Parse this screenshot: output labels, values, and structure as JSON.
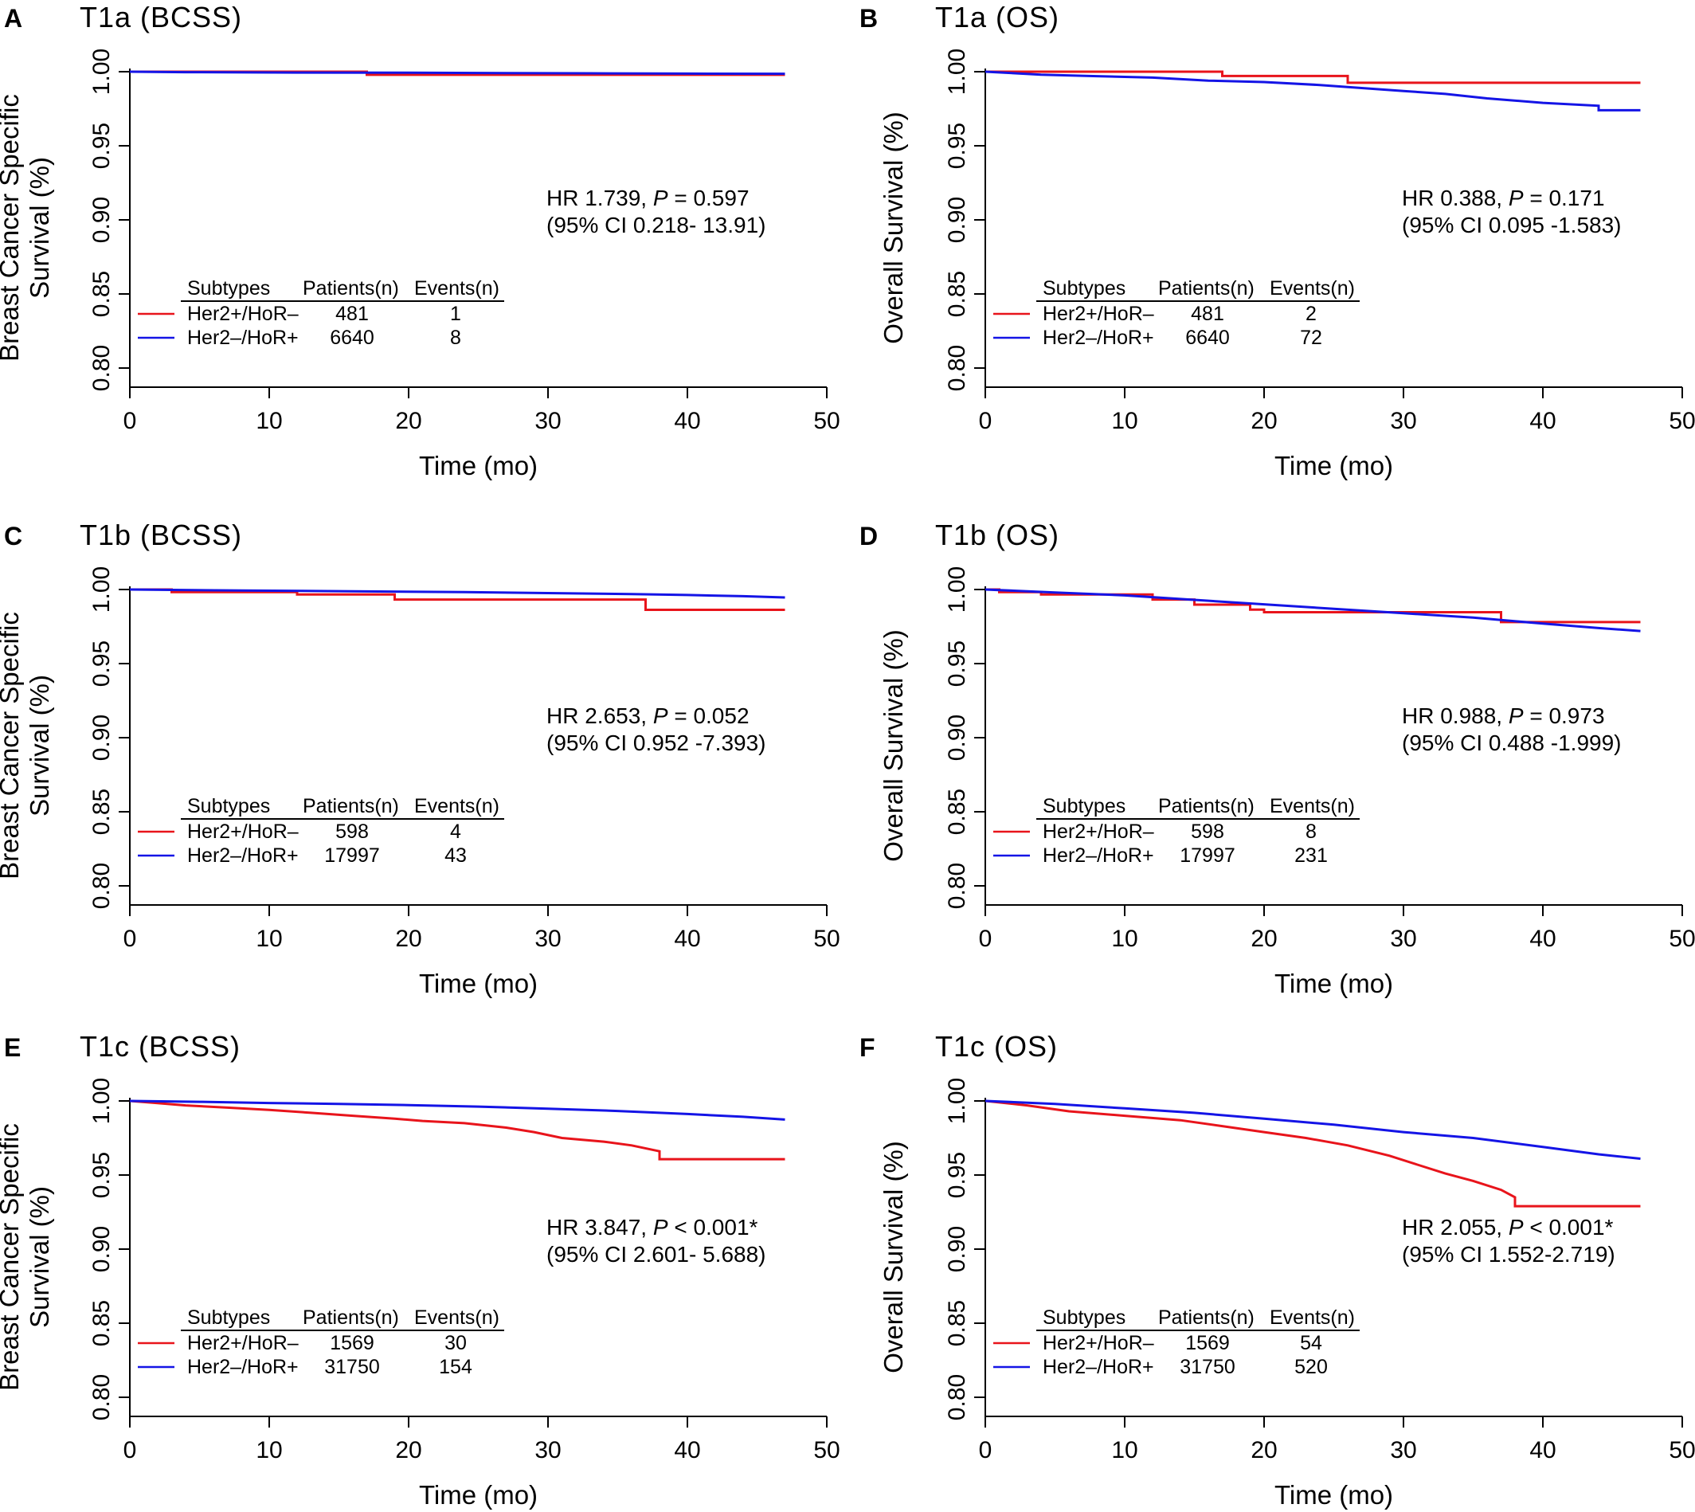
{
  "colors": {
    "her2_pos": "#e8141b",
    "her2_neg": "#1414e6"
  },
  "chart_data": [
    {
      "type": "line",
      "panel_label": "A",
      "title": "T1a (BCSS)",
      "ylabel_lines": [
        "Breast Cancer Specific",
        "Survival (%)"
      ],
      "xlabel": "Time (mo)",
      "xlim": [
        0,
        50
      ],
      "ylim": [
        0.8,
        1.0
      ],
      "x_ticks": [
        "0",
        "10",
        "20",
        "30",
        "40",
        "50"
      ],
      "y_ticks": [
        "0.80",
        "0.85",
        "0.90",
        "0.95",
        "1.00"
      ],
      "hr_line": {
        "prefix": "HR 1.739, ",
        "p_symbol": "P",
        "suffix": " = 0.597"
      },
      "ci_line": "(95% CI 0.218- 13.91)",
      "legend": {
        "headers": [
          "Subtypes",
          "Patients(n)",
          "Events(n)"
        ],
        "rows": [
          {
            "subtype": "Her2+/HoR–",
            "patients": "481",
            "events": "1"
          },
          {
            "subtype": "Her2–/HoR+",
            "patients": "6640",
            "events": "8"
          }
        ]
      },
      "series": [
        {
          "name": "Her2+/HoR–",
          "color_key": "her2_pos",
          "points": [
            [
              0,
              1.0
            ],
            [
              17,
              1.0
            ],
            [
              17,
              0.9979
            ],
            [
              47,
              0.9979
            ]
          ]
        },
        {
          "name": "Her2–/HoR+",
          "color_key": "her2_neg",
          "points": [
            [
              0,
              1.0
            ],
            [
              4,
              0.9997
            ],
            [
              12,
              0.9994
            ],
            [
              20,
              0.9993
            ],
            [
              27,
              0.9991
            ],
            [
              33,
              0.9989
            ],
            [
              40,
              0.9987
            ],
            [
              47,
              0.9986
            ]
          ]
        }
      ]
    },
    {
      "type": "line",
      "panel_label": "B",
      "title": "T1a (OS)",
      "ylabel_lines": [
        "Overall Survival (%)"
      ],
      "xlabel": "Time (mo)",
      "xlim": [
        0,
        50
      ],
      "ylim": [
        0.8,
        1.0
      ],
      "x_ticks": [
        "0",
        "10",
        "20",
        "30",
        "40",
        "50"
      ],
      "y_ticks": [
        "0.80",
        "0.85",
        "0.90",
        "0.95",
        "1.00"
      ],
      "hr_line": {
        "prefix": "HR 0.388, ",
        "p_symbol": "P",
        "suffix": " = 0.171"
      },
      "ci_line": "(95% CI 0.095 -1.583)",
      "legend": {
        "headers": [
          "Subtypes",
          "Patients(n)",
          "Events(n)"
        ],
        "rows": [
          {
            "subtype": "Her2+/HoR–",
            "patients": "481",
            "events": "2"
          },
          {
            "subtype": "Her2–/HoR+",
            "patients": "6640",
            "events": "72"
          }
        ]
      },
      "series": [
        {
          "name": "Her2+/HoR–",
          "color_key": "her2_pos",
          "points": [
            [
              0,
              1.0
            ],
            [
              17,
              1.0
            ],
            [
              17,
              0.9971
            ],
            [
              26,
              0.9971
            ],
            [
              26,
              0.9925
            ],
            [
              47,
              0.9925
            ]
          ]
        },
        {
          "name": "Her2–/HoR+",
          "color_key": "her2_neg",
          "points": [
            [
              0,
              1.0
            ],
            [
              4,
              0.998
            ],
            [
              8,
              0.997
            ],
            [
              12,
              0.996
            ],
            [
              16,
              0.994
            ],
            [
              20,
              0.993
            ],
            [
              24,
              0.991
            ],
            [
              27,
              0.989
            ],
            [
              30,
              0.987
            ],
            [
              33,
              0.985
            ],
            [
              36,
              0.982
            ],
            [
              40,
              0.979
            ],
            [
              44,
              0.977
            ],
            [
              44,
              0.974
            ],
            [
              47,
              0.974
            ]
          ]
        }
      ]
    },
    {
      "type": "line",
      "panel_label": "C",
      "title": "T1b (BCSS)",
      "ylabel_lines": [
        "Breast Cancer Specific",
        "Survival (%)"
      ],
      "xlabel": "Time (mo)",
      "xlim": [
        0,
        50
      ],
      "ylim": [
        0.8,
        1.0
      ],
      "x_ticks": [
        "0",
        "10",
        "20",
        "30",
        "40",
        "50"
      ],
      "y_ticks": [
        "0.80",
        "0.85",
        "0.90",
        "0.95",
        "1.00"
      ],
      "hr_line": {
        "prefix": "HR 2.653, ",
        "p_symbol": "P",
        "suffix": " = 0.052"
      },
      "ci_line": "(95% CI 0.952 -7.393)",
      "legend": {
        "headers": [
          "Subtypes",
          "Patients(n)",
          "Events(n)"
        ],
        "rows": [
          {
            "subtype": "Her2+/HoR–",
            "patients": "598",
            "events": "4"
          },
          {
            "subtype": "Her2–/HoR+",
            "patients": "17997",
            "events": "43"
          }
        ]
      },
      "series": [
        {
          "name": "Her2+/HoR–",
          "color_key": "her2_pos",
          "points": [
            [
              0,
              1.0
            ],
            [
              3,
              1.0
            ],
            [
              3,
              0.9983
            ],
            [
              12,
              0.9983
            ],
            [
              12,
              0.9966
            ],
            [
              19,
              0.9966
            ],
            [
              19,
              0.9932
            ],
            [
              37,
              0.9932
            ],
            [
              37,
              0.9863
            ],
            [
              47,
              0.9863
            ]
          ]
        },
        {
          "name": "Her2–/HoR+",
          "color_key": "her2_neg",
          "points": [
            [
              0,
              1.0
            ],
            [
              8,
              0.9993
            ],
            [
              16,
              0.9988
            ],
            [
              24,
              0.9982
            ],
            [
              30,
              0.9976
            ],
            [
              36,
              0.9969
            ],
            [
              40,
              0.9963
            ],
            [
              44,
              0.9955
            ],
            [
              47,
              0.9946
            ]
          ]
        }
      ]
    },
    {
      "type": "line",
      "panel_label": "D",
      "title": "T1b (OS)",
      "ylabel_lines": [
        "Overall Survival (%)"
      ],
      "xlabel": "Time (mo)",
      "xlim": [
        0,
        50
      ],
      "ylim": [
        0.8,
        1.0
      ],
      "x_ticks": [
        "0",
        "10",
        "20",
        "30",
        "40",
        "50"
      ],
      "y_ticks": [
        "0.80",
        "0.85",
        "0.90",
        "0.95",
        "1.00"
      ],
      "hr_line": {
        "prefix": "HR 0.988, ",
        "p_symbol": "P",
        "suffix": " = 0.973"
      },
      "ci_line": "(95% CI 0.488 -1.999)",
      "legend": {
        "headers": [
          "Subtypes",
          "Patients(n)",
          "Events(n)"
        ],
        "rows": [
          {
            "subtype": "Her2+/HoR–",
            "patients": "598",
            "events": "8"
          },
          {
            "subtype": "Her2–/HoR+",
            "patients": "17997",
            "events": "231"
          }
        ]
      },
      "series": [
        {
          "name": "Her2+/HoR–",
          "color_key": "her2_pos",
          "points": [
            [
              0,
              1.0
            ],
            [
              1,
              1.0
            ],
            [
              1,
              0.9983
            ],
            [
              4,
              0.9983
            ],
            [
              4,
              0.9966
            ],
            [
              12,
              0.9966
            ],
            [
              12,
              0.9932
            ],
            [
              15,
              0.9932
            ],
            [
              15,
              0.9898
            ],
            [
              19,
              0.9898
            ],
            [
              19,
              0.9864
            ],
            [
              20,
              0.9864
            ],
            [
              20,
              0.9847
            ],
            [
              37,
              0.9847
            ],
            [
              37,
              0.978
            ],
            [
              47,
              0.978
            ]
          ]
        },
        {
          "name": "Her2–/HoR+",
          "color_key": "her2_neg",
          "points": [
            [
              0,
              1.0
            ],
            [
              5,
              0.998
            ],
            [
              10,
              0.996
            ],
            [
              15,
              0.993
            ],
            [
              20,
              0.99
            ],
            [
              25,
              0.987
            ],
            [
              30,
              0.984
            ],
            [
              35,
              0.981
            ],
            [
              40,
              0.977
            ],
            [
              44,
              0.974
            ],
            [
              47,
              0.972
            ]
          ]
        }
      ]
    },
    {
      "type": "line",
      "panel_label": "E",
      "title": "T1c (BCSS)",
      "ylabel_lines": [
        "Breast Cancer Specific",
        "Survival (%)"
      ],
      "xlabel": "Time (mo)",
      "xlim": [
        0,
        50
      ],
      "ylim": [
        0.8,
        1.0
      ],
      "x_ticks": [
        "0",
        "10",
        "20",
        "30",
        "40",
        "50"
      ],
      "y_ticks": [
        "0.80",
        "0.85",
        "0.90",
        "0.95",
        "1.00"
      ],
      "hr_line": {
        "prefix": "HR 3.847, ",
        "p_symbol": "P",
        "suffix": " < 0.001*"
      },
      "ci_line": "(95% CI 2.601- 5.688)",
      "legend": {
        "headers": [
          "Subtypes",
          "Patients(n)",
          "Events(n)"
        ],
        "rows": [
          {
            "subtype": "Her2+/HoR–",
            "patients": "1569",
            "events": "30"
          },
          {
            "subtype": "Her2–/HoR+",
            "patients": "31750",
            "events": "154"
          }
        ]
      },
      "series": [
        {
          "name": "Her2+/HoR–",
          "color_key": "her2_pos",
          "points": [
            [
              0,
              1.0
            ],
            [
              2,
              0.9985
            ],
            [
              4,
              0.997
            ],
            [
              7,
              0.9955
            ],
            [
              10,
              0.994
            ],
            [
              13,
              0.992
            ],
            [
              16,
              0.99
            ],
            [
              19,
              0.988
            ],
            [
              21,
              0.9865
            ],
            [
              24,
              0.985
            ],
            [
              27,
              0.982
            ],
            [
              29,
              0.979
            ],
            [
              31,
              0.975
            ],
            [
              34,
              0.9725
            ],
            [
              36,
              0.97
            ],
            [
              38,
              0.966
            ],
            [
              38,
              0.9607
            ],
            [
              47,
              0.9607
            ]
          ]
        },
        {
          "name": "Her2–/HoR+",
          "color_key": "her2_neg",
          "points": [
            [
              0,
              1.0
            ],
            [
              5,
              0.9994
            ],
            [
              10,
              0.9986
            ],
            [
              15,
              0.998
            ],
            [
              20,
              0.9972
            ],
            [
              25,
              0.9962
            ],
            [
              30,
              0.9948
            ],
            [
              35,
              0.9932
            ],
            [
              40,
              0.9912
            ],
            [
              44,
              0.9893
            ],
            [
              47,
              0.9874
            ]
          ]
        }
      ]
    },
    {
      "type": "line",
      "panel_label": "F",
      "title": "T1c (OS)",
      "ylabel_lines": [
        "Overall Survival (%)"
      ],
      "xlabel": "Time (mo)",
      "xlim": [
        0,
        50
      ],
      "ylim": [
        0.8,
        1.0
      ],
      "x_ticks": [
        "0",
        "10",
        "20",
        "30",
        "40",
        "50"
      ],
      "y_ticks": [
        "0.80",
        "0.85",
        "0.90",
        "0.95",
        "1.00"
      ],
      "hr_line": {
        "prefix": "HR 2.055, ",
        "p_symbol": "P",
        "suffix": " < 0.001*"
      },
      "ci_line": "(95% CI 1.552-2.719)",
      "legend": {
        "headers": [
          "Subtypes",
          "Patients(n)",
          "Events(n)"
        ],
        "rows": [
          {
            "subtype": "Her2+/HoR–",
            "patients": "1569",
            "events": "54"
          },
          {
            "subtype": "Her2–/HoR+",
            "patients": "31750",
            "events": "520"
          }
        ]
      },
      "series": [
        {
          "name": "Her2+/HoR–",
          "color_key": "her2_pos",
          "points": [
            [
              0,
              1.0
            ],
            [
              3,
              0.997
            ],
            [
              6,
              0.993
            ],
            [
              10,
              0.99
            ],
            [
              14,
              0.987
            ],
            [
              17,
              0.983
            ],
            [
              20,
              0.979
            ],
            [
              23,
              0.975
            ],
            [
              26,
              0.97
            ],
            [
              29,
              0.963
            ],
            [
              31,
              0.957
            ],
            [
              33,
              0.951
            ],
            [
              35,
              0.946
            ],
            [
              37,
              0.94
            ],
            [
              38,
              0.935
            ],
            [
              38,
              0.929
            ],
            [
              47,
              0.929
            ]
          ]
        },
        {
          "name": "Her2–/HoR+",
          "color_key": "her2_neg",
          "points": [
            [
              0,
              1.0
            ],
            [
              5,
              0.998
            ],
            [
              10,
              0.995
            ],
            [
              15,
              0.992
            ],
            [
              20,
              0.988
            ],
            [
              25,
              0.984
            ],
            [
              30,
              0.979
            ],
            [
              35,
              0.975
            ],
            [
              40,
              0.969
            ],
            [
              44,
              0.964
            ],
            [
              47,
              0.961
            ]
          ]
        }
      ]
    }
  ]
}
